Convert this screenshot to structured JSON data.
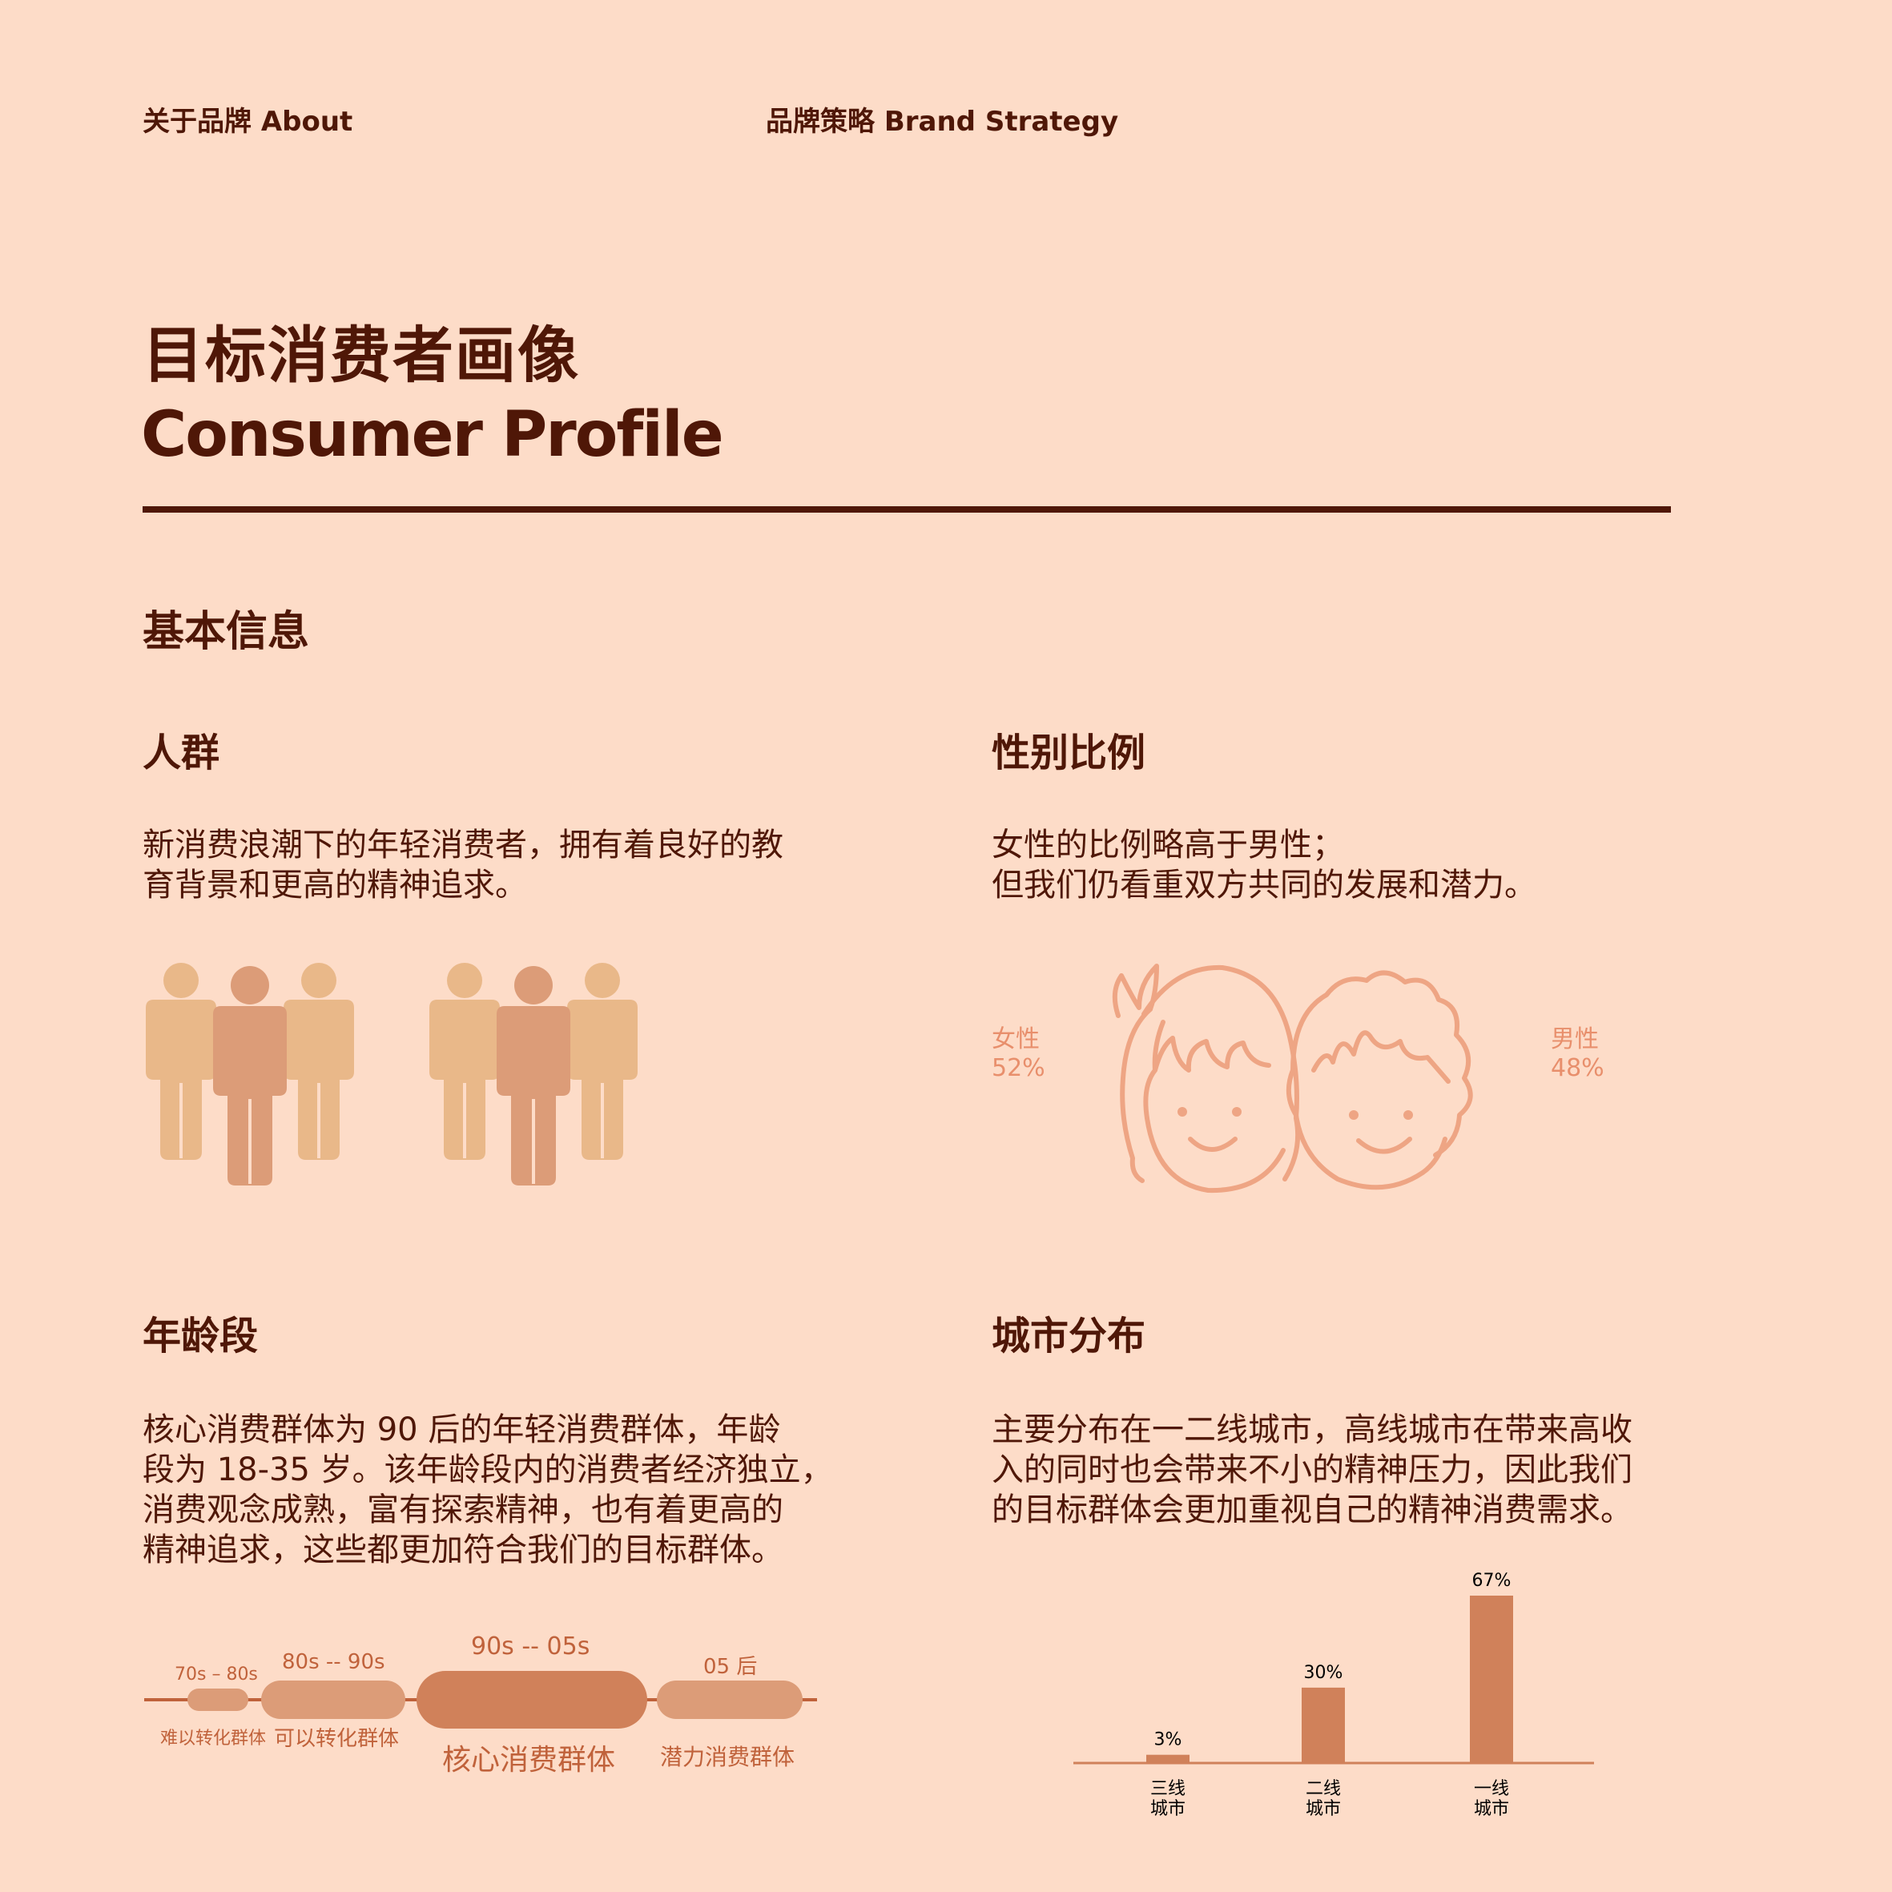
{
  "nav": {
    "about": "关于品牌 About",
    "strategy": "品牌策略 Brand Strategy"
  },
  "title": {
    "cn": "目标消费者画像",
    "en": "Consumer Profile"
  },
  "section": {
    "title": "基本信息"
  },
  "crowd": {
    "title": "人群",
    "text_line1": "新消费浪潮下的年轻消费者，拥有着良好的教",
    "text_line2": "育背景和更高的精神追求。"
  },
  "gender": {
    "title": "性别比例",
    "text_line1": "女性的比例略高于男性；",
    "text_line2": "但我们仍看重双方共同的发展和潜力。",
    "female_label": "女性",
    "female_value": "52%",
    "male_label": "男性",
    "male_value": "48%"
  },
  "age": {
    "title": "年龄段",
    "text_line1": "核心消费群体为 90 后的年轻消费群体，年龄",
    "text_line2": "段为 18-35 岁。该年龄段内的消费者经济独立，",
    "text_line3": "消费观念成熟，富有探索精神，也有着更高的",
    "text_line4": "精神追求，这些都更加符合我们的目标群体。",
    "segments": [
      {
        "range": "70s – 80s",
        "group": "难以转化群体"
      },
      {
        "range": "80s -- 90s",
        "group": "可以转化群体"
      },
      {
        "range": "90s -- 05s",
        "group": "核心消费群体"
      },
      {
        "range": "05 后",
        "group": "潜力消费群体"
      }
    ]
  },
  "city": {
    "title": "城市分布",
    "text_line1": "主要分布在一二线城市，高线城市在带来高收",
    "text_line2": "入的同时也会带来不小的精神压力，因此我们",
    "text_line3": "的目标群体会更加重视自己的精神消费需求。"
  },
  "colors": {
    "background": "#fddcc8",
    "text": "#4f1707",
    "accent": "#d0815a",
    "light": "#e9b889",
    "mid": "#dc9c78"
  },
  "chart_data": {
    "type": "bar",
    "categories": [
      [
        "三线",
        "城市"
      ],
      [
        "二线",
        "城市"
      ],
      [
        "一线",
        "城市"
      ]
    ],
    "values": [
      3,
      30,
      67
    ],
    "labels": [
      "3%",
      "30%",
      "67%"
    ],
    "ylim": [
      0,
      67
    ]
  }
}
